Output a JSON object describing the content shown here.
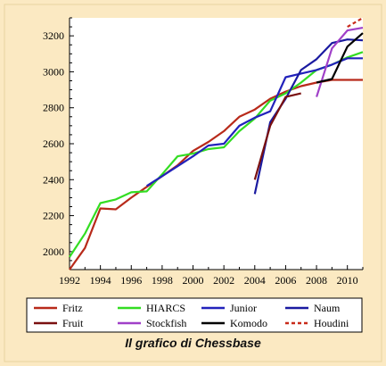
{
  "caption": "Il grafico di Chessbase",
  "chart_data": {
    "type": "line",
    "title": "",
    "xlabel": "",
    "ylabel": "",
    "xlim": [
      1992,
      2011
    ],
    "ylim": [
      1900,
      3300
    ],
    "x_ticks": [
      1992,
      1994,
      1996,
      1998,
      2000,
      2002,
      2004,
      2006,
      2008,
      2010
    ],
    "y_ticks": [
      2000,
      2200,
      2400,
      2600,
      2800,
      3000,
      3200
    ],
    "grid": false,
    "legend_position": "bottom",
    "series": [
      {
        "name": "Fritz",
        "color": "#b82a1a",
        "points": [
          [
            1992,
            1900
          ],
          [
            1993,
            2020
          ],
          [
            1994,
            2240
          ],
          [
            1995,
            2235
          ],
          [
            1996,
            2300
          ],
          [
            1997,
            2360
          ],
          [
            1998,
            2420
          ],
          [
            1999,
            2480
          ],
          [
            2000,
            2560
          ],
          [
            2001,
            2610
          ],
          [
            2002,
            2670
          ],
          [
            2003,
            2750
          ],
          [
            2004,
            2790
          ],
          [
            2005,
            2850
          ],
          [
            2006,
            2890
          ],
          [
            2007,
            2920
          ],
          [
            2008,
            2940
          ],
          [
            2009,
            2955
          ],
          [
            2010,
            2955
          ],
          [
            2011,
            2955
          ]
        ]
      },
      {
        "name": "HIARCS",
        "color": "#33dd22",
        "points": [
          [
            1992,
            1970
          ],
          [
            1993,
            2100
          ],
          [
            1994,
            2270
          ],
          [
            1995,
            2290
          ],
          [
            1996,
            2330
          ],
          [
            1997,
            2335
          ],
          [
            1998,
            2430
          ],
          [
            1999,
            2530
          ],
          [
            2000,
            2545
          ],
          [
            2001,
            2570
          ],
          [
            2002,
            2580
          ],
          [
            2003,
            2670
          ],
          [
            2004,
            2740
          ],
          [
            2005,
            2840
          ],
          [
            2006,
            2880
          ],
          [
            2007,
            2940
          ],
          [
            2008,
            3010
          ],
          [
            2009,
            3040
          ],
          [
            2010,
            3080
          ],
          [
            2011,
            3110
          ]
        ]
      },
      {
        "name": "Junior",
        "color": "#2222bb",
        "points": [
          [
            1997,
            2365
          ],
          [
            1998,
            2420
          ],
          [
            1999,
            2475
          ],
          [
            2000,
            2530
          ],
          [
            2001,
            2590
          ],
          [
            2002,
            2600
          ],
          [
            2003,
            2700
          ],
          [
            2004,
            2745
          ],
          [
            2005,
            2780
          ],
          [
            2006,
            2970
          ],
          [
            2007,
            2990
          ],
          [
            2008,
            3010
          ],
          [
            2009,
            3040
          ],
          [
            2010,
            3075
          ],
          [
            2011,
            3075
          ]
        ]
      },
      {
        "name": "Naum",
        "color": "#1a1aa0",
        "points": [
          [
            2004,
            2320
          ],
          [
            2005,
            2720
          ],
          [
            2006,
            2850
          ],
          [
            2007,
            3010
          ],
          [
            2008,
            3070
          ],
          [
            2009,
            3160
          ],
          [
            2010,
            3180
          ],
          [
            2011,
            3175
          ]
        ]
      },
      {
        "name": "Fruit",
        "color": "#7a1010",
        "points": [
          [
            2004,
            2400
          ],
          [
            2005,
            2700
          ],
          [
            2006,
            2860
          ],
          [
            2007,
            2880
          ]
        ]
      },
      {
        "name": "Stockfish",
        "color": "#a040c8",
        "points": [
          [
            2008,
            2860
          ],
          [
            2009,
            3130
          ],
          [
            2010,
            3230
          ],
          [
            2011,
            3245
          ]
        ]
      },
      {
        "name": "Komodo",
        "color": "#000000",
        "points": [
          [
            2008,
            2940
          ],
          [
            2009,
            2960
          ],
          [
            2010,
            3140
          ],
          [
            2011,
            3215
          ]
        ]
      },
      {
        "name": "Houdini",
        "color": "#c82a1a",
        "dashed": true,
        "points": [
          [
            2010,
            3250
          ],
          [
            2011,
            3300
          ]
        ]
      }
    ]
  }
}
